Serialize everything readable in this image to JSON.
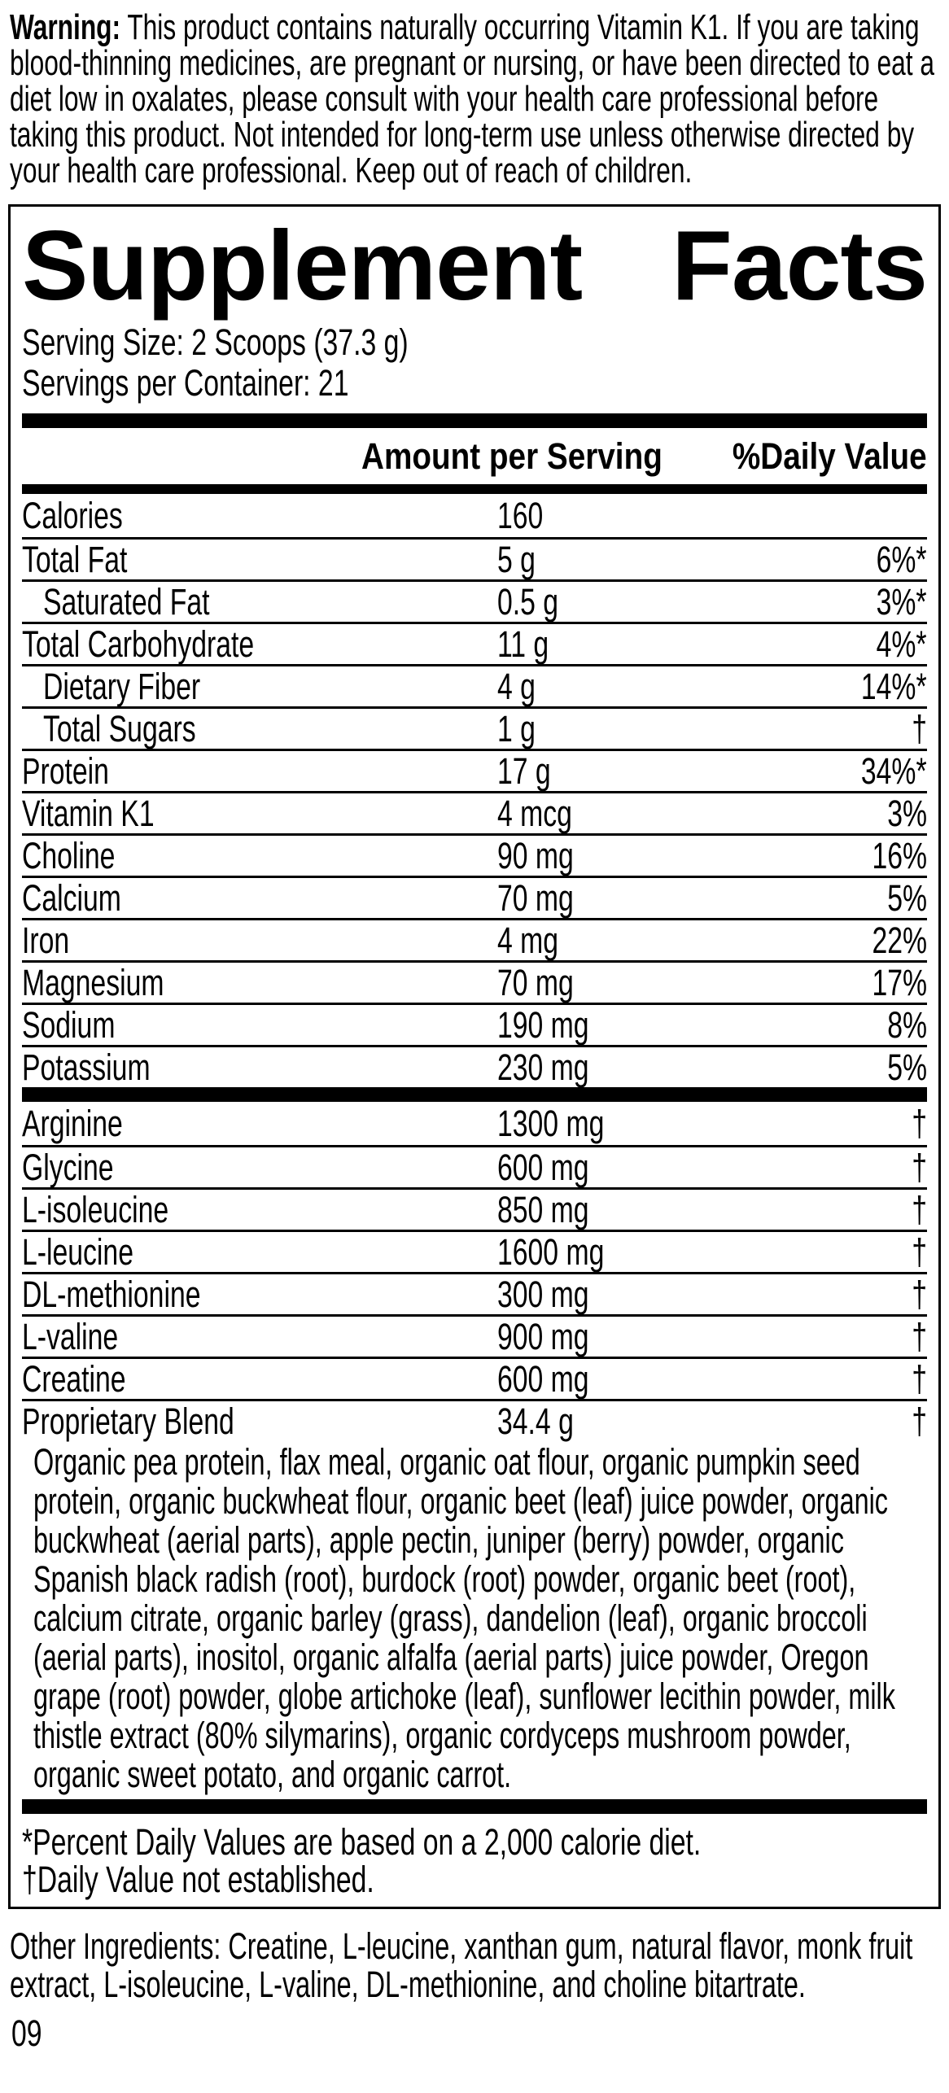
{
  "warning": {
    "label": "Warning:",
    "text": "This product contains naturally occurring Vitamin K1. If you are taking blood-thinning medicines, are pregnant or nursing, or have been directed to eat a diet low in oxalates, please consult with your health care professional before taking this product. Not intended for long-term use unless otherwise directed by your health care professional. Keep out of reach of children."
  },
  "panel": {
    "title_left": "Supplement",
    "title_right": "Facts",
    "serving_size": "Serving Size: 2 Scoops (37.3 g)",
    "servings_per_container": "Servings per Container: 21",
    "col_amount": "Amount per Serving",
    "col_dv": "%Daily Value",
    "main_rows": [
      {
        "label": "Calories",
        "amount": "160",
        "dv": "",
        "indent": false
      },
      {
        "label": "Total Fat",
        "amount": "5 g",
        "dv": "6%*",
        "indent": false
      },
      {
        "label": "Saturated Fat",
        "amount": "0.5 g",
        "dv": "3%*",
        "indent": true
      },
      {
        "label": "Total Carbohydrate",
        "amount": "11 g",
        "dv": "4%*",
        "indent": false
      },
      {
        "label": "Dietary Fiber",
        "amount": "4 g",
        "dv": "14%*",
        "indent": true
      },
      {
        "label": "Total Sugars",
        "amount": "1 g",
        "dv": "†",
        "indent": true
      },
      {
        "label": "Protein",
        "amount": "17 g",
        "dv": "34%*",
        "indent": false
      },
      {
        "label": "Vitamin K1",
        "amount": "4 mcg",
        "dv": "3%",
        "indent": false
      },
      {
        "label": "Choline",
        "amount": "90 mg",
        "dv": "16%",
        "indent": false
      },
      {
        "label": "Calcium",
        "amount": "70 mg",
        "dv": "5%",
        "indent": false
      },
      {
        "label": "Iron",
        "amount": "4 mg",
        "dv": "22%",
        "indent": false
      },
      {
        "label": "Magnesium",
        "amount": "70 mg",
        "dv": "17%",
        "indent": false
      },
      {
        "label": "Sodium",
        "amount": "190 mg",
        "dv": "8%",
        "indent": false
      },
      {
        "label": "Potassium",
        "amount": "230 mg",
        "dv": "5%",
        "indent": false
      }
    ],
    "amino_rows": [
      {
        "label": "Arginine",
        "amount": "1300 mg",
        "dv": "†",
        "indent": false
      },
      {
        "label": "Glycine",
        "amount": "600 mg",
        "dv": "†",
        "indent": false
      },
      {
        "label": "L-isoleucine",
        "amount": "850 mg",
        "dv": "†",
        "indent": false
      },
      {
        "label": "L-leucine",
        "amount": "1600 mg",
        "dv": "†",
        "indent": false
      },
      {
        "label": "DL-methionine",
        "amount": "300 mg",
        "dv": "†",
        "indent": false
      },
      {
        "label": "L-valine",
        "amount": "900 mg",
        "dv": "†",
        "indent": false
      },
      {
        "label": "Creatine",
        "amount": "600 mg",
        "dv": "†",
        "indent": false
      },
      {
        "label": "Proprietary Blend",
        "amount": "34.4 g",
        "dv": "†",
        "indent": false
      }
    ],
    "blend_description": "Organic pea protein, flax meal, organic oat flour, organic pumpkin seed protein, organic buckwheat flour, organic beet (leaf) juice powder, organic buckwheat (aerial parts), apple pectin, juniper (berry) powder, organic Spanish black radish (root), burdock (root) powder, organic beet (root), calcium citrate, organic barley (grass), dandelion (leaf), organic broccoli (aerial parts), inositol, organic alfalfa (aerial parts) juice powder, Oregon grape (root) powder, globe artichoke (leaf), sunflower lecithin powder, milk thistle extract (80% silymarins), organic cordyceps mushroom powder, organic sweet potato, and organic carrot.",
    "footnotes": [
      "*Percent Daily Values are based on a 2,000 calorie diet.",
      "†Daily Value not established."
    ]
  },
  "other_ingredients": "Other Ingredients: Creatine, L-leucine, xanthan gum, natural flavor, monk fruit extract, L-isoleucine, L-valine, DL-methionine, and choline bitartrate.",
  "page_number": "09"
}
